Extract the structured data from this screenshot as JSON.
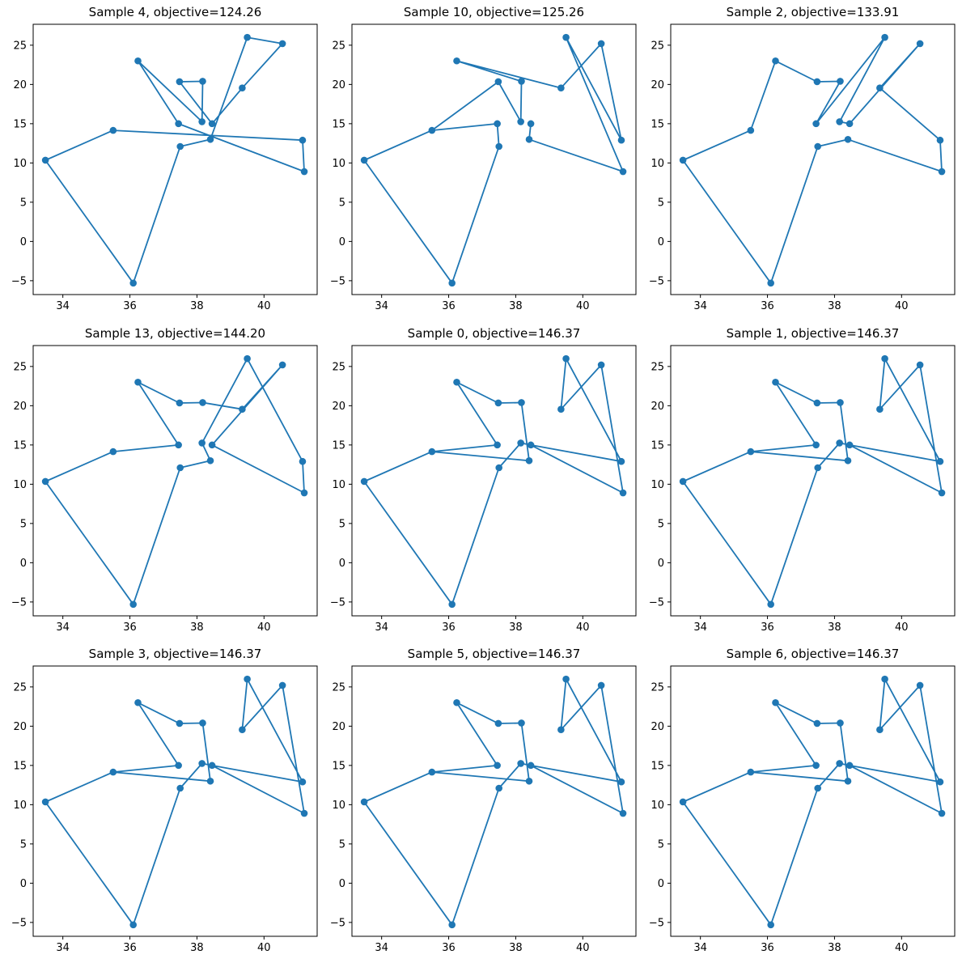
{
  "figure": {
    "background_color": "#ffffff",
    "accent_color": "#1f77b4",
    "rows": 3,
    "cols": 3
  },
  "chart_data": {
    "type": "line",
    "title": "",
    "xlabel": "",
    "ylabel": "",
    "grid": false,
    "legend": "none",
    "marker": "circle",
    "line_color": "#1f77b4",
    "marker_color": "#1f77b4",
    "xlim": [
      33.115,
      41.585
    ],
    "ylim": [
      -6.765,
      27.665
    ],
    "xticks": [
      34,
      36,
      38,
      40
    ],
    "yticks": [
      -5,
      0,
      5,
      10,
      15,
      20,
      25
    ],
    "xtick_labels": [
      "34",
      "36",
      "38",
      "40"
    ],
    "ytick_labels": [
      "−5",
      "0",
      "5",
      "10",
      "15",
      "20",
      "25"
    ],
    "points": {
      "A": [
        33.48,
        10.35
      ],
      "B": [
        35.5,
        14.15
      ],
      "C": [
        36.24,
        23.0
      ],
      "D": [
        36.1,
        -5.3
      ],
      "E": [
        37.48,
        20.35
      ],
      "F": [
        37.45,
        15.0
      ],
      "G": [
        37.5,
        12.1
      ],
      "H": [
        38.17,
        20.4
      ],
      "I": [
        38.15,
        15.25
      ],
      "J": [
        38.45,
        15.0
      ],
      "K": [
        38.4,
        13.0
      ],
      "L": [
        39.5,
        26.0
      ],
      "M": [
        39.35,
        19.55
      ],
      "N": [
        40.55,
        25.2
      ],
      "O": [
        41.15,
        12.9
      ],
      "P": [
        41.2,
        8.9
      ]
    },
    "subplots": [
      {
        "sample": 4,
        "objective": 124.26,
        "title": "Sample 4, objective=124.26",
        "tour": [
          "A",
          "B",
          "O",
          "P",
          "F",
          "C",
          "I",
          "H",
          "E",
          "J",
          "M",
          "N",
          "L",
          "K",
          "G",
          "D",
          "A"
        ]
      },
      {
        "sample": 10,
        "objective": 125.26,
        "title": "Sample 10, objective=125.26",
        "tour": [
          "J",
          "K",
          "P",
          "L",
          "O",
          "N",
          "M",
          "C",
          "H",
          "I",
          "E",
          "B",
          "F",
          "G",
          "D",
          "A",
          "B"
        ]
      },
      {
        "sample": 2,
        "objective": 133.91,
        "title": "Sample 2, objective=133.91",
        "tour": [
          "A",
          "B",
          "C",
          "E",
          "H",
          "F",
          "L",
          "I",
          "J",
          "N",
          "M",
          "O",
          "P",
          "K",
          "G",
          "D",
          "A"
        ]
      },
      {
        "sample": 13,
        "objective": 144.2,
        "title": "Sample 13, objective=144.20",
        "tour": [
          "A",
          "B",
          "F",
          "C",
          "E",
          "H",
          "M",
          "N",
          "J",
          "P",
          "O",
          "L",
          "I",
          "K",
          "G",
          "D",
          "A"
        ]
      },
      {
        "sample": 0,
        "objective": 146.37,
        "title": "Sample 0, objective=146.37",
        "tour": [
          "B",
          "F",
          "C",
          "E",
          "H",
          "K",
          "B",
          "A",
          "D",
          "G",
          "I",
          "J",
          "P",
          "N",
          "M",
          "L",
          "O",
          "J"
        ]
      },
      {
        "sample": 1,
        "objective": 146.37,
        "title": "Sample 1, objective=146.37",
        "tour": [
          "B",
          "F",
          "C",
          "E",
          "H",
          "K",
          "B",
          "A",
          "D",
          "G",
          "I",
          "J",
          "P",
          "N",
          "M",
          "L",
          "O",
          "J"
        ]
      },
      {
        "sample": 3,
        "objective": 146.37,
        "title": "Sample 3, objective=146.37",
        "tour": [
          "B",
          "F",
          "C",
          "E",
          "H",
          "K",
          "B",
          "A",
          "D",
          "G",
          "I",
          "J",
          "P",
          "N",
          "M",
          "L",
          "O",
          "J"
        ]
      },
      {
        "sample": 5,
        "objective": 146.37,
        "title": "Sample 5, objective=146.37",
        "tour": [
          "B",
          "F",
          "C",
          "E",
          "H",
          "K",
          "B",
          "A",
          "D",
          "G",
          "I",
          "J",
          "P",
          "N",
          "M",
          "L",
          "O",
          "J"
        ]
      },
      {
        "sample": 6,
        "objective": 146.37,
        "title": "Sample 6, objective=146.37",
        "tour": [
          "B",
          "F",
          "C",
          "E",
          "H",
          "K",
          "B",
          "A",
          "D",
          "G",
          "I",
          "J",
          "P",
          "N",
          "M",
          "L",
          "O",
          "J"
        ]
      }
    ]
  }
}
